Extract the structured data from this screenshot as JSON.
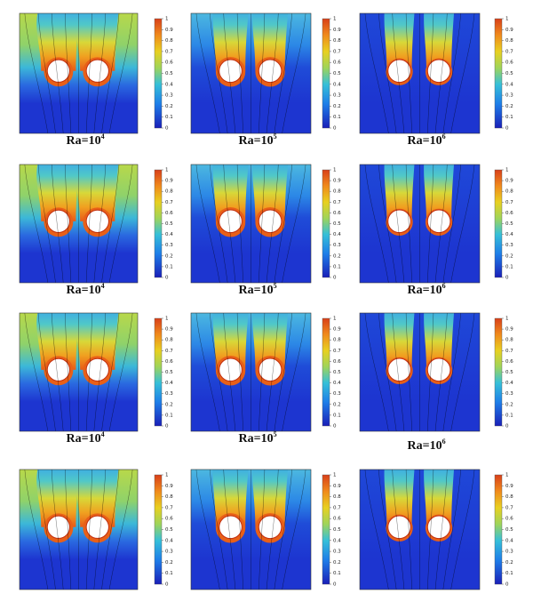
{
  "colorbar": {
    "ticks": [
      0,
      0.1,
      0.2,
      0.3,
      0.4,
      0.5,
      0.6,
      0.7,
      0.8,
      0.9,
      1
    ]
  },
  "rows": [
    {
      "labels": [
        {
          "base": "Ra=10",
          "exponent": "4"
        },
        {
          "base": "Ra=10",
          "exponent": "5"
        },
        {
          "base": "Ra=10",
          "exponent": "6"
        }
      ]
    },
    {
      "labels": [
        {
          "base": "Ra=10",
          "exponent": "4"
        },
        {
          "base": "Ra=10",
          "exponent": "5"
        },
        {
          "base": "Ra=10",
          "exponent": "6"
        }
      ]
    },
    {
      "labels": [
        {
          "base": "Ra=10",
          "exponent": "4"
        },
        {
          "base": "Ra=10",
          "exponent": "5"
        },
        {
          "base": "Ra=10",
          "exponent": "6"
        }
      ]
    },
    {
      "labels": []
    }
  ]
}
